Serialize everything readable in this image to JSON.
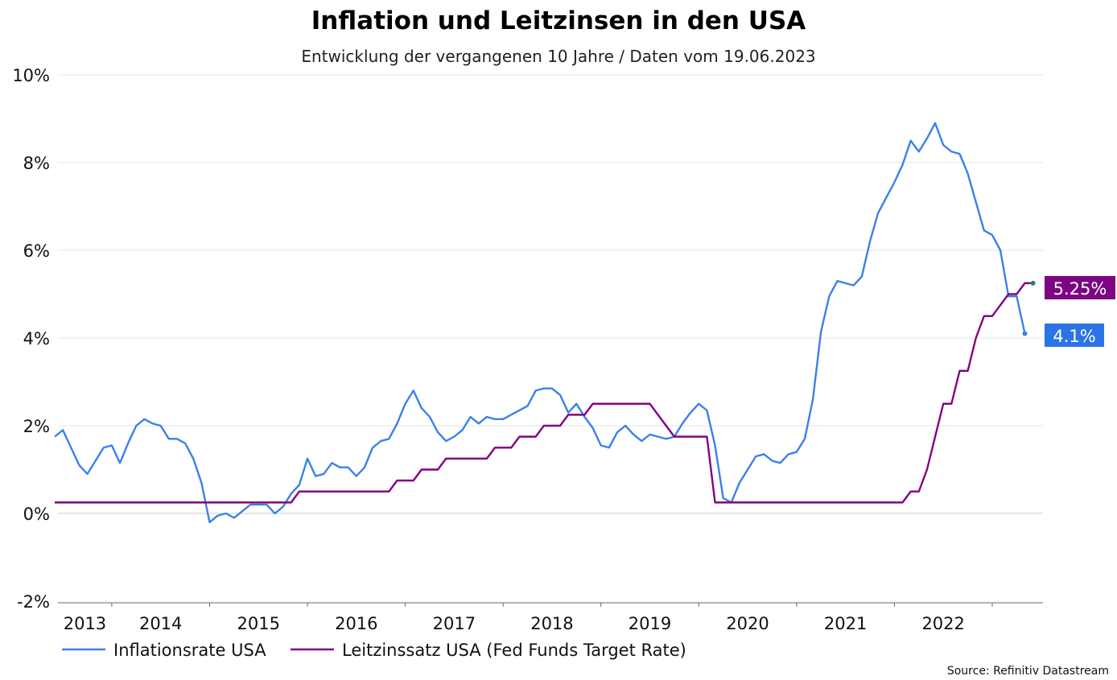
{
  "chart_data": {
    "type": "line",
    "title": "Inflation und Leitzinsen in den USA",
    "subtitle": "Entwicklung der vergangenen 10 Jahre / Daten vom 19.06.2023",
    "source": "Source: Refinitiv Datastream",
    "ylim": [
      -2,
      10
    ],
    "yticks": [
      -2,
      0,
      2,
      4,
      6,
      8,
      10
    ],
    "ytick_labels": [
      "-2%",
      "0%",
      "2%",
      "4%",
      "6%",
      "8%",
      "10%"
    ],
    "xtick_labels": [
      "2013",
      "2014",
      "2015",
      "2016",
      "2017",
      "2018",
      "2019",
      "2020",
      "2021",
      "2022"
    ],
    "grid": "horizontal",
    "legend_position": "bottom-left",
    "x": [
      "2013-06",
      "2013-07",
      "2013-08",
      "2013-09",
      "2013-10",
      "2013-11",
      "2013-12",
      "2014-01",
      "2014-02",
      "2014-03",
      "2014-04",
      "2014-05",
      "2014-06",
      "2014-07",
      "2014-08",
      "2014-09",
      "2014-10",
      "2014-11",
      "2014-12",
      "2015-01",
      "2015-02",
      "2015-03",
      "2015-04",
      "2015-05",
      "2015-06",
      "2015-07",
      "2015-08",
      "2015-09",
      "2015-10",
      "2015-11",
      "2015-12",
      "2016-01",
      "2016-02",
      "2016-03",
      "2016-04",
      "2016-05",
      "2016-06",
      "2016-07",
      "2016-08",
      "2016-09",
      "2016-10",
      "2016-11",
      "2016-12",
      "2017-01",
      "2017-02",
      "2017-03",
      "2017-04",
      "2017-05",
      "2017-06",
      "2017-07",
      "2017-08",
      "2017-09",
      "2017-10",
      "2017-11",
      "2017-12",
      "2018-01",
      "2018-02",
      "2018-03",
      "2018-04",
      "2018-05",
      "2018-06",
      "2018-07",
      "2018-08",
      "2018-09",
      "2018-10",
      "2018-11",
      "2018-12",
      "2019-01",
      "2019-02",
      "2019-03",
      "2019-04",
      "2019-05",
      "2019-06",
      "2019-07",
      "2019-08",
      "2019-09",
      "2019-10",
      "2019-11",
      "2019-12",
      "2020-01",
      "2020-02",
      "2020-03",
      "2020-04",
      "2020-05",
      "2020-06",
      "2020-07",
      "2020-08",
      "2020-09",
      "2020-10",
      "2020-11",
      "2020-12",
      "2021-01",
      "2021-02",
      "2021-03",
      "2021-04",
      "2021-05",
      "2021-06",
      "2021-07",
      "2021-08",
      "2021-09",
      "2021-10",
      "2021-11",
      "2021-12",
      "2022-01",
      "2022-02",
      "2022-03",
      "2022-04",
      "2022-05",
      "2022-06",
      "2022-07",
      "2022-08",
      "2022-09",
      "2022-10",
      "2022-11",
      "2022-12",
      "2023-01",
      "2023-02",
      "2023-03",
      "2023-04",
      "2023-05",
      "2023-06"
    ],
    "series": [
      {
        "name": "Inflationsrate USA",
        "color": "#3b80ea",
        "end_label": "4.1%",
        "label_color": "#2b74e6",
        "values": [
          1.75,
          1.9,
          1.5,
          1.1,
          0.9,
          1.2,
          1.5,
          1.55,
          1.15,
          1.6,
          2.0,
          2.15,
          2.05,
          2.0,
          1.7,
          1.7,
          1.6,
          1.25,
          0.7,
          -0.2,
          -0.05,
          0.0,
          -0.1,
          0.05,
          0.2,
          0.2,
          0.2,
          0.0,
          0.15,
          0.45,
          0.65,
          1.25,
          0.85,
          0.9,
          1.15,
          1.05,
          1.05,
          0.85,
          1.05,
          1.5,
          1.65,
          1.7,
          2.05,
          2.5,
          2.8,
          2.4,
          2.2,
          1.85,
          1.65,
          1.75,
          1.9,
          2.2,
          2.05,
          2.2,
          2.15,
          2.15,
          2.25,
          2.35,
          2.45,
          2.8,
          2.85,
          2.85,
          2.7,
          2.3,
          2.5,
          2.2,
          1.95,
          1.55,
          1.5,
          1.85,
          2.0,
          1.8,
          1.65,
          1.8,
          1.75,
          1.7,
          1.75,
          2.05,
          2.3,
          2.5,
          2.35,
          1.55,
          0.35,
          0.25,
          0.7,
          1.0,
          1.3,
          1.35,
          1.2,
          1.15,
          1.35,
          1.4,
          1.7,
          2.6,
          4.15,
          4.95,
          5.3,
          5.25,
          5.2,
          5.4,
          6.2,
          6.85,
          7.2,
          7.55,
          7.95,
          8.5,
          8.25,
          8.55,
          8.9,
          8.4,
          8.25,
          8.2,
          7.75,
          7.1,
          6.45,
          6.35,
          6.0,
          4.95,
          4.95,
          4.1,
          null
        ]
      },
      {
        "name": "Leitzinssatz USA (Fed Funds Target Rate)",
        "color": "#820382",
        "end_label": "5.25%",
        "label_color": "#7d0582",
        "end_dot_color": "#1f8a5a",
        "values": [
          0.25,
          0.25,
          0.25,
          0.25,
          0.25,
          0.25,
          0.25,
          0.25,
          0.25,
          0.25,
          0.25,
          0.25,
          0.25,
          0.25,
          0.25,
          0.25,
          0.25,
          0.25,
          0.25,
          0.25,
          0.25,
          0.25,
          0.25,
          0.25,
          0.25,
          0.25,
          0.25,
          0.25,
          0.25,
          0.25,
          0.5,
          0.5,
          0.5,
          0.5,
          0.5,
          0.5,
          0.5,
          0.5,
          0.5,
          0.5,
          0.5,
          0.5,
          0.75,
          0.75,
          0.75,
          1.0,
          1.0,
          1.0,
          1.25,
          1.25,
          1.25,
          1.25,
          1.25,
          1.25,
          1.5,
          1.5,
          1.5,
          1.75,
          1.75,
          1.75,
          2.0,
          2.0,
          2.0,
          2.25,
          2.25,
          2.25,
          2.5,
          2.5,
          2.5,
          2.5,
          2.5,
          2.5,
          2.5,
          2.5,
          2.25,
          2.0,
          1.75,
          1.75,
          1.75,
          1.75,
          1.75,
          0.25,
          0.25,
          0.25,
          0.25,
          0.25,
          0.25,
          0.25,
          0.25,
          0.25,
          0.25,
          0.25,
          0.25,
          0.25,
          0.25,
          0.25,
          0.25,
          0.25,
          0.25,
          0.25,
          0.25,
          0.25,
          0.25,
          0.25,
          0.25,
          0.5,
          0.5,
          1.0,
          1.75,
          2.5,
          2.5,
          3.25,
          3.25,
          4.0,
          4.5,
          4.5,
          4.75,
          5.0,
          5.0,
          5.25,
          5.25
        ]
      }
    ]
  }
}
